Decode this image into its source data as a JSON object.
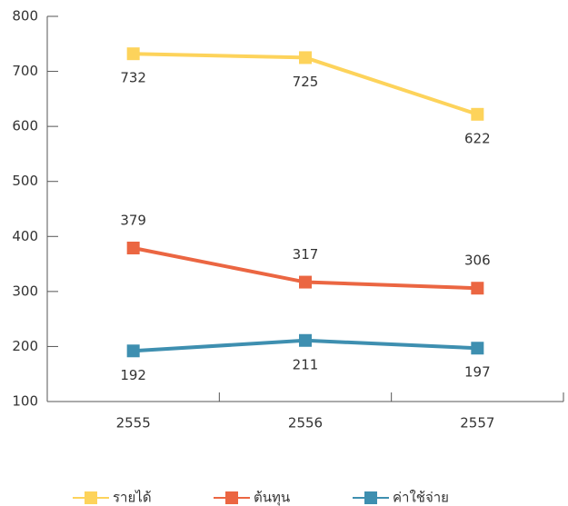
{
  "chart_data": {
    "type": "line",
    "categories": [
      "2555",
      "2556",
      "2557"
    ],
    "series": [
      {
        "name": "รายได้",
        "color": "#fdd35b",
        "values": [
          732,
          725,
          622
        ],
        "label_position": "below"
      },
      {
        "name": "ต้นทุน",
        "color": "#eb6642",
        "values": [
          379,
          317,
          306
        ],
        "label_position": "above"
      },
      {
        "name": "ค่าใช้จ่าย",
        "color": "#3e8fb0",
        "values": [
          192,
          211,
          197
        ],
        "label_position": "below"
      }
    ],
    "ylim": [
      100,
      800
    ],
    "yticks": [
      100,
      200,
      300,
      400,
      500,
      600,
      700,
      800
    ],
    "grid": false,
    "legend": "bottom"
  }
}
